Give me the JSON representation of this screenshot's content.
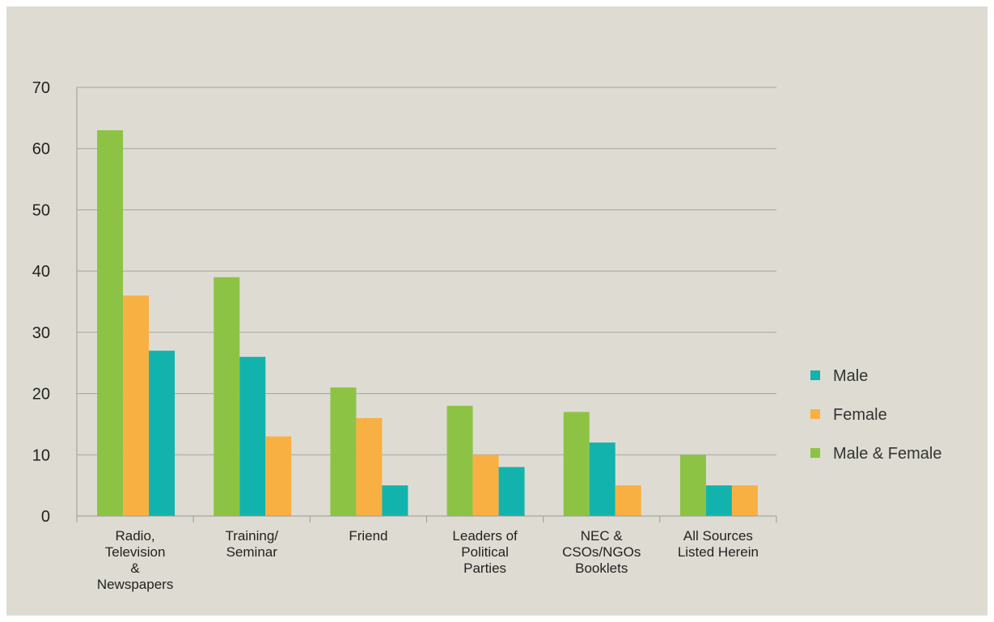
{
  "chart_data": {
    "type": "bar",
    "title": "",
    "xlabel": "",
    "ylabel": "",
    "ylim": [
      0,
      70
    ],
    "yticks": [
      0,
      10,
      20,
      30,
      40,
      50,
      60,
      70
    ],
    "grid": true,
    "legend_position": "right",
    "categories": [
      [
        "Radio,",
        "Television",
        "&",
        "Newspapers"
      ],
      [
        "Training/",
        "Seminar"
      ],
      [
        "Friend"
      ],
      [
        "Leaders of",
        "Political",
        "Parties"
      ],
      [
        "NEC &",
        "CSOs/NGOs",
        "Booklets"
      ],
      [
        "All Sources",
        "Listed Herein"
      ]
    ],
    "bars": [
      [
        {
          "series": "Male & Female",
          "value": 63
        },
        {
          "series": "Female",
          "value": 36
        },
        {
          "series": "Male",
          "value": 27
        }
      ],
      [
        {
          "series": "Male & Female",
          "value": 39
        },
        {
          "series": "Male",
          "value": 26
        },
        {
          "series": "Female",
          "value": 13
        }
      ],
      [
        {
          "series": "Male & Female",
          "value": 21
        },
        {
          "series": "Female",
          "value": 16
        },
        {
          "series": "Male",
          "value": 5
        }
      ],
      [
        {
          "series": "Male & Female",
          "value": 18
        },
        {
          "series": "Female",
          "value": 10
        },
        {
          "series": "Male",
          "value": 8
        }
      ],
      [
        {
          "series": "Male & Female",
          "value": 17
        },
        {
          "series": "Male",
          "value": 12
        },
        {
          "series": "Female",
          "value": 5
        }
      ],
      [
        {
          "series": "Male & Female",
          "value": 10
        },
        {
          "series": "Male",
          "value": 5
        },
        {
          "series": "Female",
          "value": 5
        }
      ]
    ],
    "legend": [
      {
        "name": "Male",
        "color": "#13b3ad"
      },
      {
        "name": "Female",
        "color": "#f9b043"
      },
      {
        "name": "Male & Female",
        "color": "#8dc345"
      }
    ]
  }
}
